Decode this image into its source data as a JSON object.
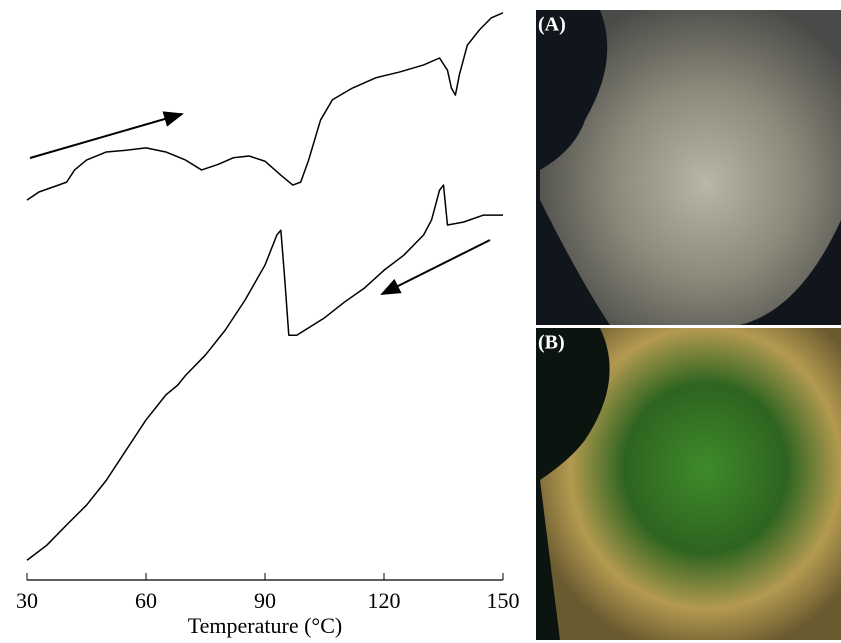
{
  "chart_data": {
    "type": "line",
    "x_label": "Temperature (°C)",
    "xlim": [
      30,
      150
    ],
    "xticks": [
      30,
      60,
      90,
      120,
      150
    ],
    "ylim": [
      0,
      100
    ],
    "series": [
      {
        "color": "#000000",
        "x": [
          30,
          33,
          38,
          40,
          42,
          45,
          50,
          55,
          60,
          65,
          70,
          74,
          78,
          82,
          86,
          90,
          94,
          97,
          99,
          101,
          104,
          107,
          112,
          118,
          124,
          130,
          134,
          136,
          137,
          138,
          139,
          141,
          144,
          147,
          150
        ],
        "values": [
          65.5,
          66.9,
          68.1,
          68.6,
          70.7,
          72.4,
          73.8,
          74.1,
          74.5,
          73.8,
          72.4,
          70.7,
          71.6,
          72.8,
          73.1,
          72.2,
          69.8,
          68.1,
          68.6,
          72.4,
          79.3,
          82.8,
          84.8,
          86.6,
          87.6,
          88.8,
          90.0,
          87.9,
          84.8,
          83.6,
          87.1,
          92.2,
          94.8,
          96.9,
          97.8
        ]
      },
      {
        "color": "#000000",
        "x": [
          30,
          35,
          40,
          45,
          50,
          55,
          60,
          65,
          68,
          70,
          75,
          80,
          85,
          90,
          93,
          94,
          95,
          96,
          98,
          105,
          110,
          115,
          120,
          125,
          130,
          132,
          134,
          135,
          136,
          140,
          145,
          150
        ],
        "values": [
          3.4,
          6.0,
          9.5,
          12.9,
          17.2,
          22.4,
          27.6,
          31.9,
          33.6,
          35.3,
          38.8,
          43.1,
          48.3,
          54.3,
          59.5,
          60.3,
          51.7,
          42.2,
          42.2,
          45.2,
          47.9,
          50.3,
          53.4,
          56.0,
          59.5,
          62.1,
          67.2,
          68.1,
          61.2,
          61.7,
          62.9,
          62.9
        ]
      }
    ],
    "panels": [
      "(A)",
      "(B)"
    ]
  }
}
